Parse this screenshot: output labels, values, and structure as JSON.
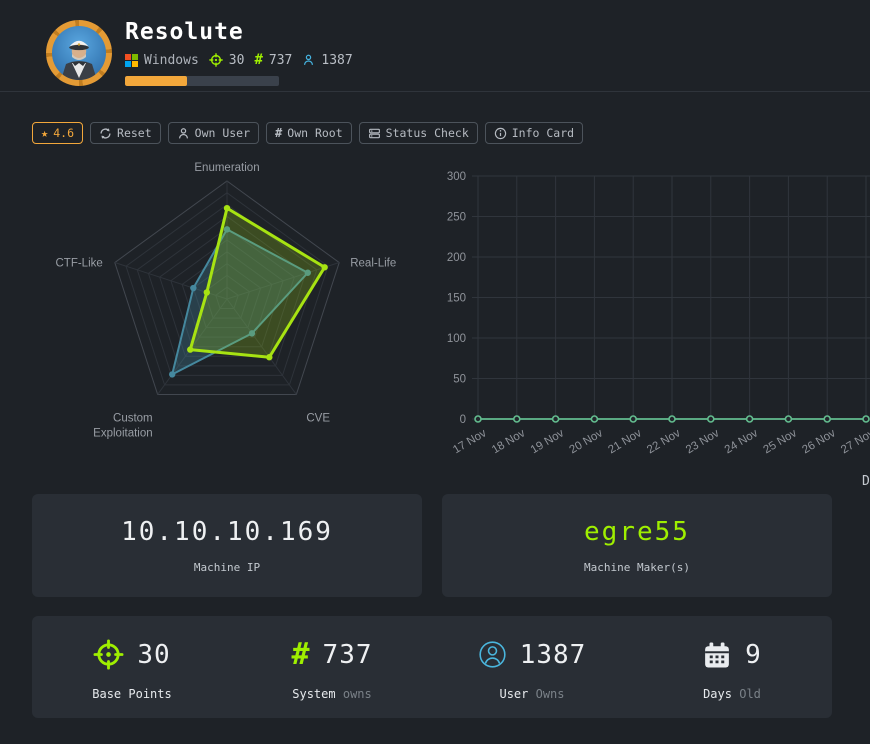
{
  "header": {
    "title": "Resolute",
    "os": "Windows",
    "points": "30",
    "system_owns": "737",
    "user_owns": "1387",
    "progress_percent": 40
  },
  "toolbar": {
    "rating_label": "4.6",
    "reset_label": "Reset",
    "own_user_label": "Own User",
    "own_root_label": "Own Root",
    "status_check_label": "Status Check",
    "info_card_label": "Info Card"
  },
  "icons": {
    "star": "★",
    "hash": "#"
  },
  "chart_data": [
    {
      "type": "radar",
      "categories": [
        "Enumeration",
        "Real-Life",
        "CVE",
        "Custom Exploitation",
        "CTF-Like"
      ],
      "max": 10,
      "levels": 10,
      "series": [
        {
          "name": "rating-teal",
          "color": "#45889e",
          "fill": "rgba(69,136,158,0.30)",
          "values": [
            5.9,
            7.2,
            3.6,
            7.9,
            3.0
          ]
        },
        {
          "name": "rating-green",
          "color": "#a7e312",
          "fill": "rgba(167,227,18,0.22)",
          "values": [
            7.7,
            8.7,
            6.1,
            5.3,
            1.8
          ]
        }
      ],
      "grid": true,
      "legend_position": "none"
    },
    {
      "type": "line",
      "x": [
        "17 Nov",
        "18 Nov",
        "19 Nov",
        "20 Nov",
        "21 Nov",
        "22 Nov",
        "23 Nov",
        "24 Nov",
        "25 Nov",
        "26 Nov",
        "27 Nov"
      ],
      "series": [
        {
          "name": "owns",
          "color": "#63bd8f",
          "values": [
            0,
            0,
            0,
            0,
            0,
            0,
            0,
            0,
            0,
            0,
            0
          ]
        }
      ],
      "ylim": [
        0,
        300
      ],
      "yticks": [
        0,
        50,
        100,
        150,
        200,
        250,
        300
      ],
      "grid": true,
      "legend_clipped_text": "D"
    }
  ],
  "info_cards": {
    "ip": {
      "value": "10.10.10.169",
      "label": "Machine IP"
    },
    "maker": {
      "value": "egre55",
      "label": "Machine Maker(s)"
    }
  },
  "stats": [
    {
      "value": "30",
      "label": "Base Points",
      "sublabel": ""
    },
    {
      "value": "737",
      "label": "System",
      "sublabel": "owns"
    },
    {
      "value": "1387",
      "label": "User",
      "sublabel": "Owns"
    },
    {
      "value": "9",
      "label": "Days",
      "sublabel": "Old"
    }
  ]
}
